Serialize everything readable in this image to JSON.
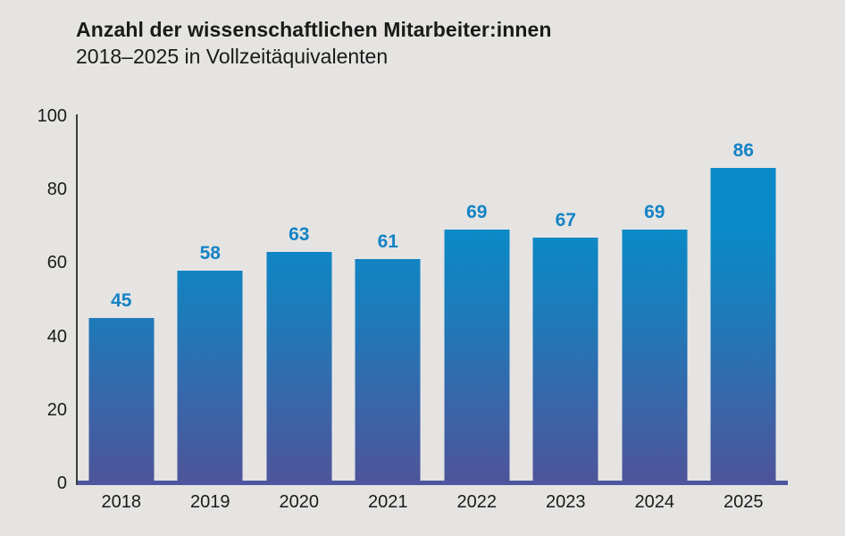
{
  "header": {
    "title": "Anzahl der wissenschaftlichen Mitarbeiter:innen",
    "subtitle": "2018–2025 in Vollzeitäquivalenten"
  },
  "colors": {
    "background": "#e5e4e3",
    "text": "#1a1a18",
    "axis": "#3c3c3a",
    "value_label_blue": "#1583c5",
    "bar_gradient_top": "#0a8ac7",
    "bar_gradient_mid": "#1e7ab9",
    "bar_gradient_low": "#3b64a8",
    "bar_gradient_bottom": "#4e5499",
    "baseline": "#4d569e"
  },
  "chart_data": {
    "type": "bar",
    "title": "Anzahl der wissenschaftlichen Mitarbeiter:innen",
    "subtitle": "2018–2025 in Vollzeitäquivalenten",
    "categories": [
      "2018",
      "2019",
      "2020",
      "2021",
      "2022",
      "2023",
      "2024",
      "2025"
    ],
    "values": [
      45,
      58,
      63,
      61,
      69,
      67,
      69,
      86
    ],
    "xlabel": "",
    "ylabel": "",
    "ylim": [
      0,
      100
    ],
    "yticks": [
      0,
      20,
      40,
      60,
      80,
      100
    ],
    "grid": false,
    "legend": false,
    "bar_color_style": "vertical gradient fixed to plot area, cyan-blue at top to purple at bottom"
  }
}
